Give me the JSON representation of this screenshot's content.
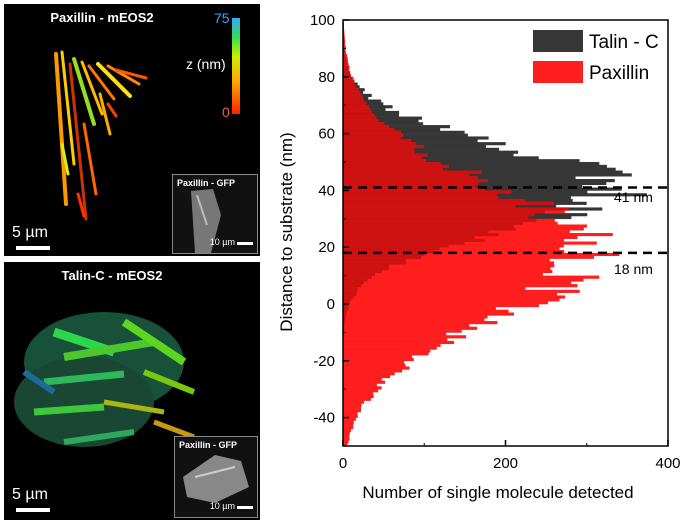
{
  "panel_a": {
    "title": "Paxillin - mEOS2",
    "colorbar": {
      "max_label": "75",
      "axis_label": "z (nm)",
      "min_label": "0"
    },
    "scalebar_label": "5 µm",
    "inset": {
      "title": "Paxillin - GFP",
      "scalebar_label": "10 µm"
    }
  },
  "panel_b": {
    "title": "Talin-C - mEOS2",
    "scalebar_label": "5 µm",
    "inset": {
      "title": "Paxillin - GFP",
      "scalebar_label": "10 µm"
    }
  },
  "colors": {
    "talin": "#363636",
    "paxillin": "#ff1e1e",
    "overlap": "#cc1111"
  },
  "chart_data": {
    "type": "bar",
    "orientation": "horizontal",
    "title": "",
    "xlabel": "Number of single molecule detected",
    "ylabel": "Distance to substrate (nm)",
    "xlim": [
      0,
      400
    ],
    "ylim": [
      -50,
      100
    ],
    "xticks": [
      "0",
      "200",
      "400"
    ],
    "yticks": [
      "-40",
      "-20",
      "0",
      "20",
      "40",
      "60",
      "80",
      "100"
    ],
    "bin_start": -50,
    "bin_width": 1,
    "series": [
      {
        "name": "Talin-C",
        "color": "#363636",
        "peak_nm": 41,
        "sigma_nm": 15,
        "peak_count": 330
      },
      {
        "name": "Paxillin",
        "color": "#ff1e1e",
        "peak_nm": 18,
        "sigma_nm": 24,
        "peak_count": 300
      }
    ],
    "legend": {
      "position": "top-right",
      "entries": [
        "Talin - C",
        "Paxillin"
      ]
    },
    "annotations": [
      {
        "y": 41,
        "label": "41 nm"
      },
      {
        "y": 18,
        "label": "18 nm"
      }
    ]
  }
}
